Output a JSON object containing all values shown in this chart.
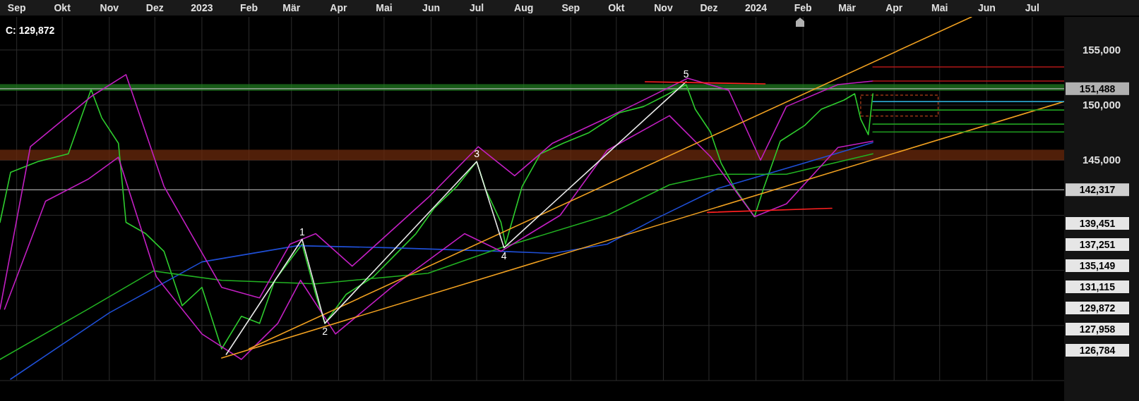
{
  "chart_data": {
    "type": "line",
    "grid": true,
    "marker": "none",
    "xlim": [
      "2022-08-21",
      "2024-07-22"
    ],
    "ylim": [
      125000,
      158000
    ],
    "xticks": [
      {
        "value": "2022-09-01",
        "label": "Sep"
      },
      {
        "value": "2022-10-01",
        "label": "Okt"
      },
      {
        "value": "2022-11-01",
        "label": "Nov"
      },
      {
        "value": "2022-12-01",
        "label": "Dez"
      },
      {
        "value": "2023-01-01",
        "label": "2023"
      },
      {
        "value": "2023-02-01",
        "label": "Feb"
      },
      {
        "value": "2023-03-01",
        "label": "Mär"
      },
      {
        "value": "2023-04-01",
        "label": "Apr"
      },
      {
        "value": "2023-05-01",
        "label": "Mai"
      },
      {
        "value": "2023-06-01",
        "label": "Jun"
      },
      {
        "value": "2023-07-01",
        "label": "Jul"
      },
      {
        "value": "2023-08-01",
        "label": "Aug"
      },
      {
        "value": "2023-09-01",
        "label": "Sep"
      },
      {
        "value": "2023-10-01",
        "label": "Okt"
      },
      {
        "value": "2023-11-01",
        "label": "Nov"
      },
      {
        "value": "2023-12-01",
        "label": "Dez"
      },
      {
        "value": "2024-01-01",
        "label": "2024"
      },
      {
        "value": "2024-02-01",
        "label": "Feb"
      },
      {
        "value": "2024-03-01",
        "label": "Mär"
      },
      {
        "value": "2024-04-01",
        "label": "Apr"
      },
      {
        "value": "2024-05-01",
        "label": "Mai"
      },
      {
        "value": "2024-06-01",
        "label": "Jun"
      },
      {
        "value": "2024-07-01",
        "label": "Jul"
      }
    ],
    "yticks": [
      {
        "value": 125000,
        "label": null
      },
      {
        "value": 130000,
        "label": null
      },
      {
        "value": 135000,
        "label": null
      },
      {
        "value": 140000,
        "label": null
      },
      {
        "value": 145000,
        "label": "145,000"
      },
      {
        "value": 150000,
        "label": "150,000"
      },
      {
        "value": 155000,
        "label": "155,000"
      }
    ],
    "bands": [
      {
        "axis": "y",
        "from": 151300,
        "to": 151900,
        "color": "#1f7a1f"
      },
      {
        "axis": "y",
        "from": 145000,
        "to": 145950,
        "color": "#6b2a0c"
      }
    ],
    "ref_lines": [
      {
        "axis": "y",
        "value": 142317,
        "label": "142,317",
        "color": "#cfcfcf"
      },
      {
        "axis": "y",
        "value": 151488,
        "label": "151,488",
        "color": "#b0b0b0"
      }
    ],
    "series": [
      {
        "color": "#2ecc2e",
        "x": [
          "2022-08-21",
          "2022-08-28",
          "2022-09-15",
          "2022-10-05",
          "2022-10-20",
          "2022-10-27",
          "2022-11-07",
          "2022-11-12",
          "2022-11-25",
          "2022-12-07",
          "2022-12-19",
          "2023-01-01",
          "2023-01-14",
          "2023-01-27",
          "2023-02-08",
          "2023-02-18",
          "2023-03-08",
          "2023-03-17",
          "2023-03-23",
          "2023-04-06",
          "2023-04-24",
          "2023-05-06",
          "2023-05-22",
          "2023-06-03",
          "2023-06-18",
          "2023-07-01",
          "2023-07-07",
          "2023-07-17",
          "2023-07-20",
          "2023-07-31",
          "2023-08-12",
          "2023-08-27",
          "2023-09-13",
          "2023-10-03",
          "2023-10-19",
          "2023-11-01",
          "2023-11-16",
          "2023-11-22",
          "2023-12-02",
          "2023-12-09",
          "2023-12-18",
          "2023-12-31",
          "2024-01-06",
          "2024-01-17",
          "2024-02-02",
          "2024-02-13",
          "2024-02-28",
          "2024-03-06",
          "2024-03-10",
          "2024-03-15",
          "2024-03-18"
        ],
        "values": [
          139360,
          143900,
          144870,
          145580,
          151410,
          148850,
          146540,
          139360,
          138330,
          136730,
          131800,
          133460,
          127880,
          130830,
          130190,
          134100,
          137370,
          132820,
          130190,
          132820,
          134420,
          136090,
          138330,
          140640,
          142630,
          144870,
          142310,
          139360,
          137370,
          142630,
          145580,
          146540,
          147500,
          149300,
          149870,
          150770,
          151860,
          149620,
          147560,
          144740,
          142440,
          139870,
          142440,
          146730,
          148140,
          149620,
          150450,
          151030,
          148720,
          147310,
          151030
        ]
      },
      {
        "color": "#1f4fd6",
        "x": [
          "2022-08-28",
          "2022-11-01",
          "2023-01-01",
          "2023-03-05",
          "2023-05-06",
          "2023-07-17",
          "2023-08-20",
          "2023-09-25",
          "2023-10-26",
          "2023-12-07",
          "2024-02-02",
          "2024-03-18"
        ],
        "values": [
          125130,
          131150,
          135770,
          137240,
          137050,
          136730,
          136540,
          137370,
          139620,
          142440,
          144740,
          146600
        ]
      },
      {
        "color": "#22b322",
        "x": [
          "2022-08-21",
          "2022-10-18",
          "2022-11-30",
          "2023-01-14",
          "2023-03-17",
          "2023-05-30",
          "2023-07-17",
          "2023-09-25",
          "2023-11-05",
          "2023-12-07",
          "2024-01-21",
          "2024-03-18"
        ],
        "values": [
          126920,
          131480,
          134940,
          134100,
          133780,
          134740,
          137050,
          140000,
          142760,
          143720,
          143720,
          145580
        ]
      },
      {
        "color": "#c21fc2",
        "x": [
          "2022-08-21",
          "2022-09-10",
          "2022-10-20",
          "2022-11-12",
          "2022-12-07",
          "2023-01-14",
          "2023-02-08",
          "2023-02-28",
          "2023-03-17",
          "2023-04-10",
          "2023-05-30",
          "2023-07-02",
          "2023-07-26",
          "2023-08-20",
          "2023-09-25",
          "2023-10-15",
          "2023-11-17",
          "2023-12-14",
          "2024-01-04",
          "2024-01-21",
          "2024-02-24",
          "2024-03-18"
        ],
        "values": [
          131480,
          146220,
          150770,
          152760,
          142630,
          133460,
          132500,
          137370,
          138330,
          135380,
          141600,
          146220,
          143590,
          146540,
          148850,
          150190,
          152440,
          151350,
          145000,
          149870,
          151860,
          152180
        ]
      },
      {
        "color": "#c21fc2",
        "x": [
          "2022-08-24",
          "2022-09-20",
          "2022-10-18",
          "2022-11-07",
          "2022-12-02",
          "2023-01-01",
          "2023-01-27",
          "2023-02-20",
          "2023-03-07",
          "2023-03-30",
          "2023-05-06",
          "2023-06-23",
          "2023-07-17",
          "2023-08-25",
          "2023-09-25",
          "2023-11-05",
          "2023-12-02",
          "2023-12-31",
          "2024-01-21",
          "2024-02-24",
          "2024-03-18"
        ],
        "values": [
          131480,
          141280,
          143270,
          145260,
          134420,
          129230,
          126920,
          130190,
          134100,
          129230,
          133460,
          138330,
          136730,
          140000,
          145900,
          149040,
          145320,
          139870,
          141030,
          146150,
          146730
        ]
      },
      {
        "color": "#f0a020",
        "x": [
          "2023-01-14",
          "2024-07-22"
        ],
        "values": [
          127050,
          150320
        ]
      },
      {
        "color": "#f0a020",
        "x": [
          "2023-02-01",
          "2024-05-22"
        ],
        "values": [
          127880,
          158000
        ]
      },
      {
        "color": "#e8e8e8",
        "x": [
          "2023-01-17",
          "2023-03-08",
          "2023-03-23",
          "2023-07-01",
          "2023-07-19",
          "2023-11-16"
        ],
        "values": [
          127370,
          137820,
          130190,
          144870,
          137050,
          152120
        ]
      },
      {
        "color": "#ff2020",
        "x": [
          "2023-10-20",
          "2024-01-07"
        ],
        "values": [
          152120,
          151920
        ]
      },
      {
        "color": "#ff2020",
        "x": [
          "2023-11-30",
          "2024-02-20"
        ],
        "values": [
          140260,
          140640
        ]
      },
      {
        "color": "#b01818",
        "x": [
          "2024-03-18",
          "2024-07-22"
        ],
        "values": [
          153460,
          153460
        ]
      },
      {
        "color": "#b01818",
        "x": [
          "2024-03-18",
          "2024-07-22"
        ],
        "values": [
          152180,
          152180
        ]
      },
      {
        "color": "#2aa0c8",
        "x": [
          "2024-03-18",
          "2024-07-22"
        ],
        "values": [
          150320,
          150320
        ]
      },
      {
        "color": "#1f9a1f",
        "x": [
          "2024-03-18",
          "2024-07-22"
        ],
        "values": [
          149550,
          149550
        ]
      },
      {
        "color": "#1f9a1f",
        "x": [
          "2024-03-18",
          "2024-07-22"
        ],
        "values": [
          148270,
          148270
        ]
      },
      {
        "color": "#1f9a1f",
        "x": [
          "2024-03-18",
          "2024-07-22"
        ],
        "values": [
          147560,
          147560
        ]
      }
    ],
    "annotations": [
      "C: 129,872",
      {
        "text": "1",
        "x": "2023-03-08",
        "y": 137820
      },
      {
        "text": "2",
        "x": "2023-03-23",
        "y": 130190
      },
      {
        "text": "3",
        "x": "2023-07-01",
        "y": 144870
      },
      {
        "text": "4",
        "x": "2023-07-19",
        "y": 137050
      },
      {
        "text": "5",
        "x": "2023-11-16",
        "y": 152120
      },
      "139,451",
      "137,251",
      "135,149",
      "131,115",
      "129,872",
      "127,958",
      "126,784"
    ]
  }
}
